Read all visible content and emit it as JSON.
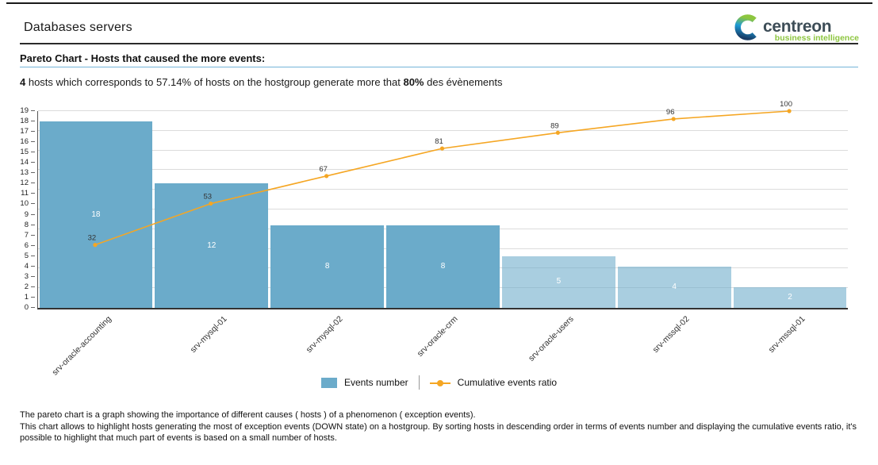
{
  "header": {
    "title": "Databases servers",
    "logo": {
      "name": "centreon",
      "tagline": "business intelligence"
    }
  },
  "report": {
    "title": "Pareto Chart - Hosts that caused the more events:",
    "subtitle": {
      "bold1": "4",
      "text1": " hosts which corresponds to 57.14% of hosts on the hostgroup generate more that ",
      "bold2": "80%",
      "text2": " des évènements"
    }
  },
  "chart_data": {
    "type": "pareto (bar + line)",
    "categories": [
      "srv-oracle-accounting",
      "srv-mysql-01",
      "srv-mysql-02",
      "srv-oracle-crm",
      "srv-oracle-users",
      "srv-mssql-02",
      "srv-mssql-01"
    ],
    "series": [
      {
        "name": "Events number",
        "type": "bar",
        "values": [
          18,
          12,
          8,
          8,
          5,
          4,
          2
        ]
      },
      {
        "name": "Cumulative events ratio",
        "type": "line",
        "unit": "%",
        "values": [
          32,
          53,
          67,
          81,
          89,
          96,
          100
        ]
      }
    ],
    "highlighted_bar_count": 4,
    "ylim": [
      0,
      19
    ],
    "y_ticks": [
      0,
      1,
      2,
      3,
      4,
      5,
      6,
      7,
      8,
      9,
      10,
      11,
      12,
      13,
      14,
      15,
      16,
      17,
      18,
      19
    ],
    "grid_percents": [
      10,
      20,
      30,
      40,
      50,
      60,
      70,
      80,
      90,
      100
    ],
    "legend_position": "bottom-center",
    "colors": {
      "bar": "#6babca",
      "bar_muted": "rgba(107,171,202,0.58)",
      "line": "#f5a623",
      "line_label": "#333333",
      "title_underline": "#74b4d8",
      "logo_green": "#8dc63f",
      "logo_navy": "#3d4d57"
    }
  },
  "legend": {
    "bar_label": "Events number",
    "line_label": "Cumulative events ratio"
  },
  "footer": {
    "line1": "The pareto chart is a graph showing the importance of different causes ( hosts ) of a phenomenon ( exception events).",
    "line2": "This chart allows to highlight hosts generating the most of exception events (DOWN state) on a hostgroup. By sorting hosts in descending order in terms of events number and displaying the cumulative events ratio, it's possible to highlight that much part of events is based on a small number of hosts."
  }
}
